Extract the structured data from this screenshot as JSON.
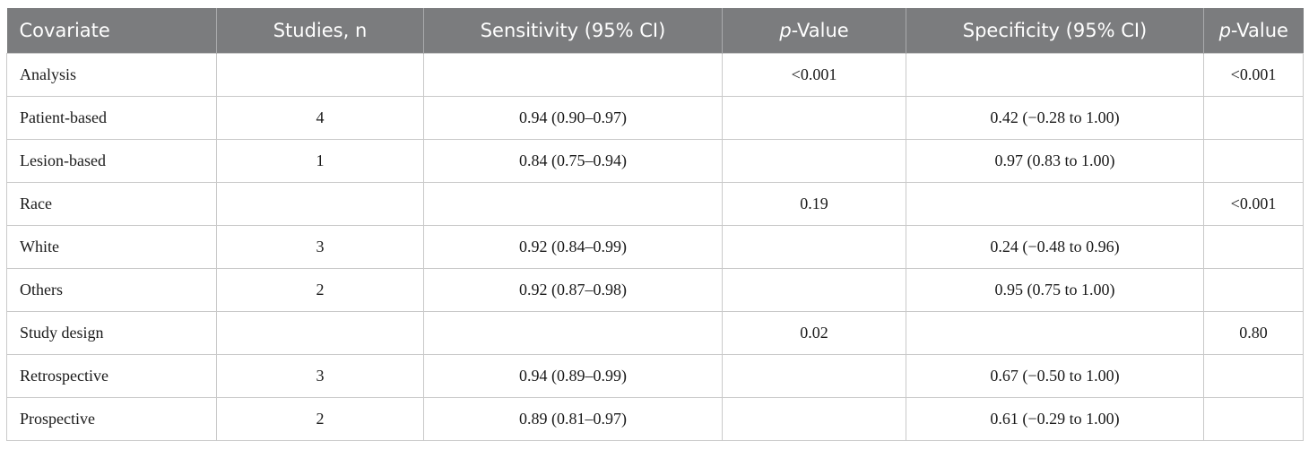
{
  "table": {
    "headers": {
      "covariate": "Covariate",
      "studies": "Studies, n",
      "sensitivity": "Sensitivity (95% CI)",
      "p_value_1_italic": "p",
      "p_value_1_rest": "-Value",
      "specificity": "Specificity (95% CI)",
      "p_value_2_italic": "p",
      "p_value_2_rest": "-Value"
    },
    "rows": [
      {
        "covariate": "Analysis",
        "studies": "",
        "sensitivity": "",
        "p_sens": "<0.001",
        "specificity": "",
        "p_spec": "<0.001"
      },
      {
        "covariate": "Patient-based",
        "studies": "4",
        "sensitivity": "0.94 (0.90–0.97)",
        "p_sens": "",
        "specificity": "0.42 (−0.28 to 1.00)",
        "p_spec": ""
      },
      {
        "covariate": "Lesion-based",
        "studies": "1",
        "sensitivity": "0.84 (0.75–0.94)",
        "p_sens": "",
        "specificity": "0.97 (0.83 to 1.00)",
        "p_spec": ""
      },
      {
        "covariate": "Race",
        "studies": "",
        "sensitivity": "",
        "p_sens": "0.19",
        "specificity": "",
        "p_spec": "<0.001"
      },
      {
        "covariate": "White",
        "studies": "3",
        "sensitivity": "0.92 (0.84–0.99)",
        "p_sens": "",
        "specificity": "0.24 (−0.48 to 0.96)",
        "p_spec": ""
      },
      {
        "covariate": "Others",
        "studies": "2",
        "sensitivity": "0.92 (0.87–0.98)",
        "p_sens": "",
        "specificity": "0.95 (0.75 to 1.00)",
        "p_spec": ""
      },
      {
        "covariate": "Study design",
        "studies": "",
        "sensitivity": "",
        "p_sens": "0.02",
        "specificity": "",
        "p_spec": "0.80"
      },
      {
        "covariate": "Retrospective",
        "studies": "3",
        "sensitivity": "0.94 (0.89–0.99)",
        "p_sens": "",
        "specificity": "0.67 (−0.50 to 1.00)",
        "p_spec": ""
      },
      {
        "covariate": "Prospective",
        "studies": "2",
        "sensitivity": "0.89 (0.81–0.97)",
        "p_sens": "",
        "specificity": "0.61 (−0.29 to 1.00)",
        "p_spec": ""
      }
    ]
  }
}
